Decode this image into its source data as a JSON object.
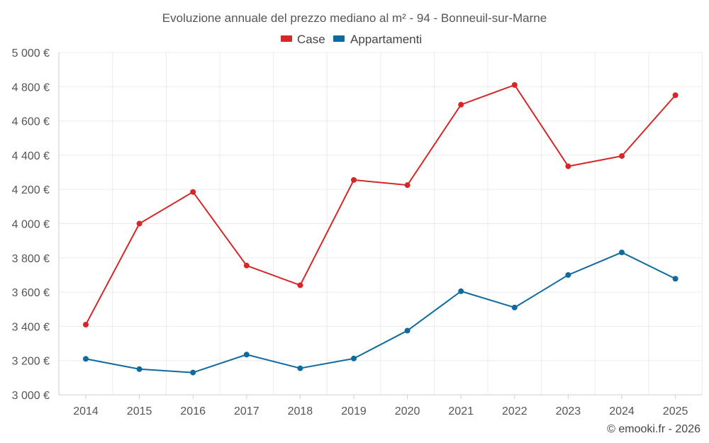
{
  "chart_data": {
    "type": "line",
    "title": "Evoluzione annuale del prezzo mediano al m² - 94 - Bonneuil-sur-Marne",
    "categories": [
      "2014",
      "2015",
      "2016",
      "2017",
      "2018",
      "2019",
      "2020",
      "2021",
      "2022",
      "2023",
      "2024",
      "2025"
    ],
    "series": [
      {
        "name": "Case",
        "color": "#d62728",
        "values": [
          3410,
          4000,
          4185,
          3755,
          3640,
          4255,
          4225,
          4695,
          4810,
          4335,
          4395,
          4750
        ]
      },
      {
        "name": "Appartamenti",
        "color": "#0f6aa0",
        "values": [
          3210,
          3150,
          3130,
          3235,
          3155,
          3212,
          3375,
          3605,
          3510,
          3700,
          3832,
          3678
        ]
      }
    ],
    "ylim": [
      3000,
      5000
    ],
    "yticks": [
      3000,
      3200,
      3400,
      3600,
      3800,
      4000,
      4200,
      4400,
      4600,
      4800,
      5000
    ],
    "ytick_labels": [
      "3 000 €",
      "3 200 €",
      "3 400 €",
      "3 600 €",
      "3 800 €",
      "4 000 €",
      "4 200 €",
      "4 400 €",
      "4 600 €",
      "4 800 €",
      "5 000 €"
    ],
    "xlabel": "",
    "ylabel": "",
    "grid": true,
    "legend_position": "top-center",
    "credit": "© emooki.fr - 2026"
  }
}
